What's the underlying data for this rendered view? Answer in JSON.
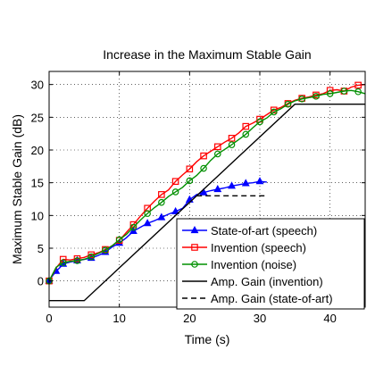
{
  "chart_data": {
    "type": "line",
    "title": "Increase in the Maximum Stable Gain",
    "xlabel": "Time (s)",
    "ylabel": "Maximum Stable Gain (dB)",
    "xlim": [
      0,
      45
    ],
    "ylim": [
      -4,
      32
    ],
    "xticks": [
      0,
      10,
      20,
      30,
      40
    ],
    "yticks": [
      0,
      5,
      10,
      15,
      20,
      25,
      30
    ],
    "grid": true,
    "legend_position": "bottom-right",
    "series": [
      {
        "name": "State-of-art (speech)",
        "color": "#0000ff",
        "dash": "solid",
        "marker": "triangle",
        "x": [
          0,
          0.5,
          1,
          1.5,
          2,
          3,
          4,
          5,
          6,
          7,
          8,
          9,
          10,
          11,
          12,
          13,
          14,
          15,
          16,
          17,
          18,
          19,
          20,
          21,
          22,
          23,
          24,
          25,
          26,
          27,
          28,
          29,
          30,
          31
        ],
        "y": [
          0,
          0.8,
          1.5,
          2.0,
          2.6,
          2.9,
          3.1,
          3.3,
          3.5,
          3.9,
          4.4,
          5.2,
          5.8,
          6.6,
          7.6,
          8.2,
          8.8,
          9.2,
          9.7,
          10.2,
          10.6,
          11.1,
          12.4,
          13.2,
          13.5,
          13.8,
          14.0,
          14.2,
          14.5,
          14.7,
          14.9,
          15.0,
          15.2,
          15.1
        ]
      },
      {
        "name": "Invention (speech)",
        "color": "#ff0000",
        "dash": "solid",
        "marker": "square",
        "x": [
          0,
          1,
          2,
          3,
          4,
          5,
          6,
          7,
          8,
          9,
          10,
          11,
          12,
          13,
          14,
          15,
          16,
          17,
          18,
          19,
          20,
          21,
          22,
          23,
          24,
          25,
          26,
          27,
          28,
          29,
          30,
          31,
          32,
          33,
          34,
          35,
          36,
          37,
          38,
          39,
          40,
          41,
          42,
          43,
          44,
          45
        ],
        "y": [
          0,
          2.0,
          3.3,
          3.2,
          3.4,
          3.6,
          4.0,
          4.3,
          4.8,
          5.4,
          6.2,
          7.4,
          8.6,
          9.9,
          11.1,
          12.2,
          13.2,
          13.9,
          15.2,
          16.2,
          17.1,
          18.2,
          19.1,
          19.8,
          20.5,
          21.2,
          21.8,
          22.6,
          23.6,
          24.1,
          24.7,
          25.4,
          26.1,
          26.5,
          27.1,
          27.6,
          27.9,
          28.1,
          28.4,
          28.6,
          29.1,
          29.2,
          29.0,
          29.6,
          29.9,
          30.0
        ]
      },
      {
        "name": "Invention (noise)",
        "color": "#009000",
        "dash": "solid",
        "marker": "circle",
        "x": [
          0,
          1,
          2,
          3,
          4,
          5,
          6,
          7,
          8,
          9,
          10,
          11,
          12,
          13,
          14,
          15,
          16,
          17,
          18,
          19,
          20,
          21,
          22,
          23,
          24,
          25,
          26,
          27,
          28,
          29,
          30,
          31,
          32,
          33,
          34,
          35,
          36,
          37,
          38,
          39,
          40,
          41,
          42,
          43,
          44,
          45
        ],
        "y": [
          0,
          2.1,
          2.8,
          3.0,
          3.1,
          3.3,
          3.7,
          4.2,
          4.7,
          5.4,
          6.3,
          7.1,
          8.2,
          9.3,
          10.3,
          11.2,
          12.0,
          12.9,
          13.6,
          14.3,
          15.3,
          16.1,
          17.2,
          18.4,
          19.4,
          20.1,
          20.8,
          21.6,
          22.4,
          23.4,
          24.3,
          24.9,
          25.8,
          26.3,
          27.0,
          27.5,
          27.8,
          28.0,
          28.2,
          28.5,
          28.6,
          28.8,
          29.0,
          29.1,
          28.9,
          28.6
        ]
      },
      {
        "name": "Amp. Gain (invention)",
        "color": "#000000",
        "dash": "solid",
        "marker": "none",
        "x": [
          0,
          5,
          35,
          45
        ],
        "y": [
          -3,
          -3,
          27,
          27
        ]
      },
      {
        "name": "Amp. Gain (state-of-art)",
        "color": "#000000",
        "dash": "dashed",
        "marker": "none",
        "x": [
          21,
          31
        ],
        "y": [
          13,
          13
        ]
      }
    ]
  }
}
